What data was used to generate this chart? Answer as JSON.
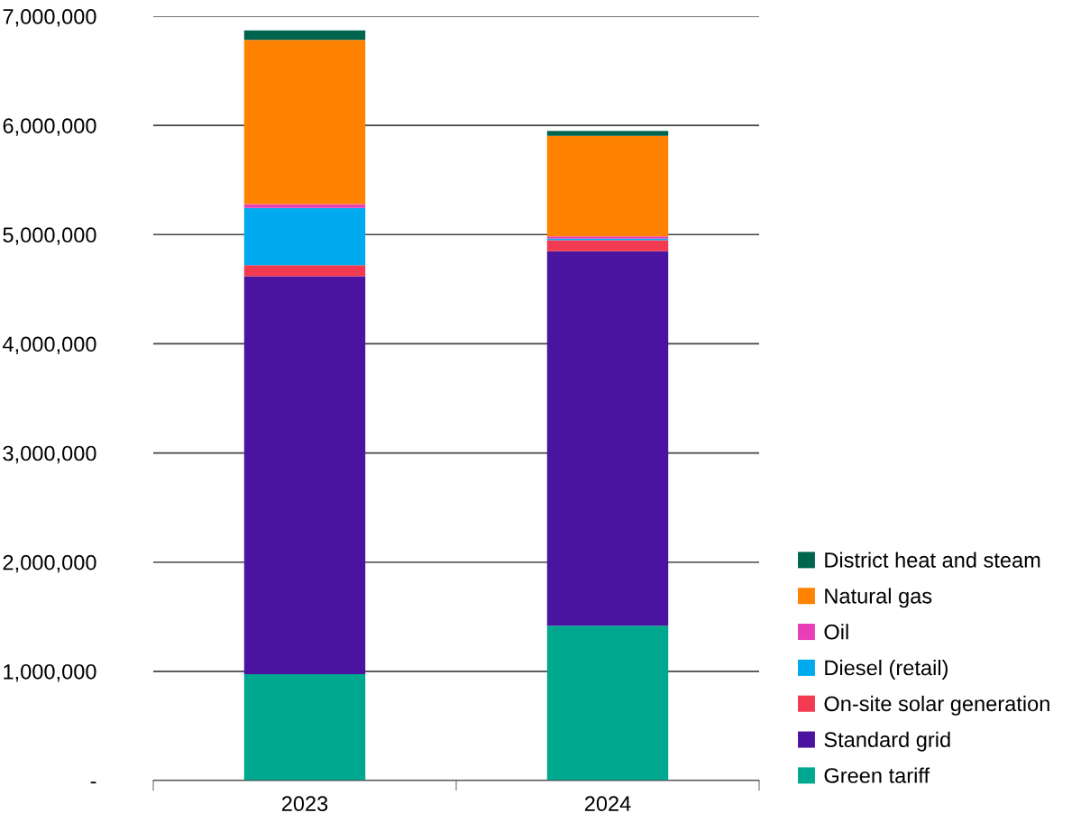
{
  "chart_data": {
    "type": "bar",
    "stacked": true,
    "categories": [
      "2023",
      "2024"
    ],
    "series": [
      {
        "name": "Green tariff",
        "color": "#00a88f",
        "values": [
          974000,
          1418000
        ]
      },
      {
        "name": "Standard grid",
        "color": "#4b14a0",
        "values": [
          3645000,
          3430000
        ]
      },
      {
        "name": "On-site solar generation",
        "color": "#f23a50",
        "values": [
          100000,
          100000
        ]
      },
      {
        "name": "Diesel (retail)",
        "color": "#00aaee",
        "values": [
          525000,
          15000
        ]
      },
      {
        "name": "Oil",
        "color": "#e83fb8",
        "values": [
          35000,
          20000
        ]
      },
      {
        "name": "Natural gas",
        "color": "#ff8200",
        "values": [
          1505000,
          922000
        ]
      },
      {
        "name": "District heat and steam",
        "color": "#00654f",
        "values": [
          85000,
          45000
        ]
      }
    ],
    "ylim": [
      0,
      7000000
    ],
    "yticks": [
      {
        "value": 0,
        "label": "-"
      },
      {
        "value": 1000000,
        "label": "1,000,000"
      },
      {
        "value": 2000000,
        "label": "2,000,000"
      },
      {
        "value": 3000000,
        "label": "3,000,000"
      },
      {
        "value": 4000000,
        "label": "4,000,000"
      },
      {
        "value": 5000000,
        "label": "5,000,000"
      },
      {
        "value": 6000000,
        "label": "6,000,000"
      },
      {
        "value": 7000000,
        "label": "7,000,000"
      }
    ],
    "grid": "y",
    "legend": "bottom right"
  }
}
